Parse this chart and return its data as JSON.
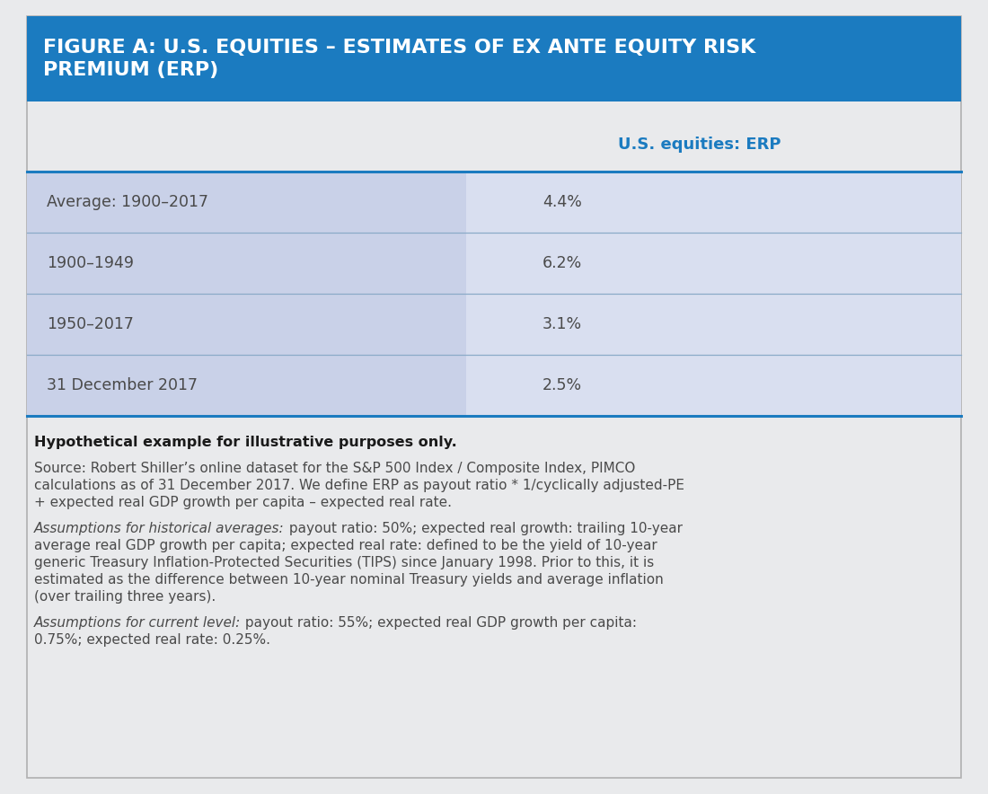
{
  "title_line1": "FIGURE A: U.S. EQUITIES – ESTIMATES OF EX ANTE EQUITY RISK",
  "title_line2": "PREMIUM (ERP)",
  "title_bg_color": "#1b7bc0",
  "title_text_color": "#ffffff",
  "col_header": "U.S. equities: ERP",
  "col_header_color": "#1b7bc0",
  "bg_color": "#e9eaec",
  "table_bg_left": "#c9d1e8",
  "table_bg_right": "#d9dff0",
  "table_rows": [
    [
      "Average: 1900–2017",
      "4.4%"
    ],
    [
      "1900–1949",
      "6.2%"
    ],
    [
      "1950–2017",
      "3.1%"
    ],
    [
      "31 December 2017",
      "2.5%"
    ]
  ],
  "row_divider_color": "#8aaac8",
  "border_color": "#1b7bc0",
  "text_color": "#4a4a4a",
  "note_bold": "Hypothetical example for illustrative purposes only.",
  "note1": "Source: Robert Shiller’s online dataset for the S&P 500 Index / Composite Index, PIMCO\ncalculations as of 31 December 2017. We define ERP as payout ratio * 1/cyclically adjusted-PE\n+ expected real GDP growth per capita – expected real rate.",
  "note2_italic": "Assumptions for historical averages:",
  "note2_rest": " payout ratio: 50%; expected real growth: trailing 10-year\naverage real GDP growth per capita; expected real rate: defined to be the yield of 10-year\ngeneric Treasury Inflation-Protected Securities (TIPS) since January 1998. Prior to this, it is\nestimated as the difference between 10-year nominal Treasury yields and average inflation\n(over trailing three years).",
  "note3_italic": "Assumptions for current level:",
  "note3_rest": " payout ratio: 55%; expected real GDP growth per capita:\n0.75%; expected real rate: 0.25%.",
  "outer_border_color": "#b0b0b0"
}
